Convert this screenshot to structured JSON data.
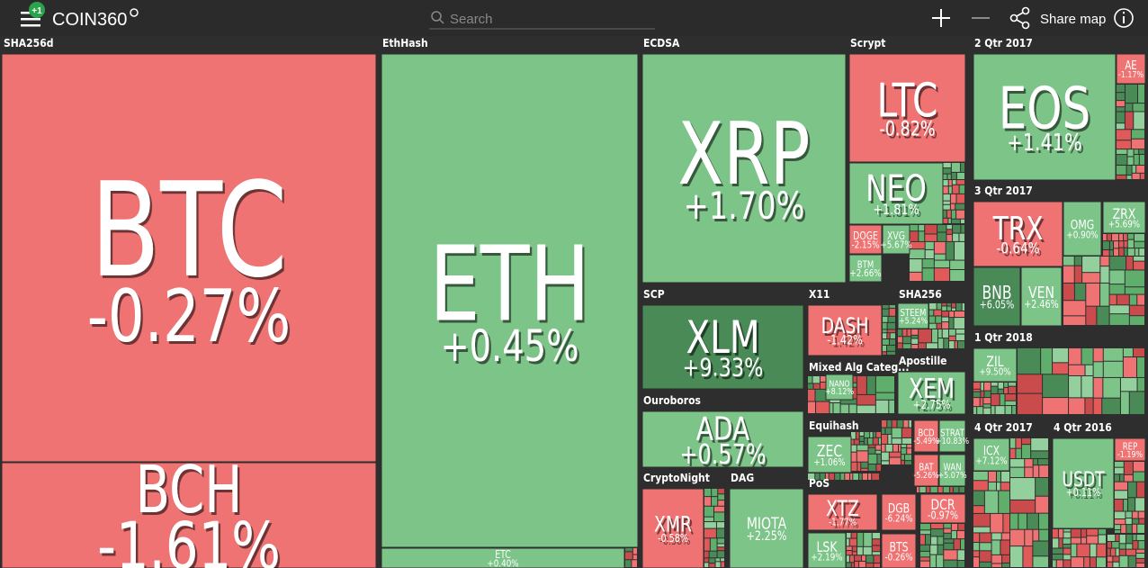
{
  "header": {
    "badge": "+1",
    "logo": "COIN360",
    "search_placeholder": "Search",
    "share": "Share map"
  },
  "groups": [
    {
      "label": "SHA256d",
      "tiles": [
        {
          "symbol": "BTC",
          "change": "-0.27%"
        },
        {
          "symbol": "BCH",
          "change": "-1.61%"
        }
      ]
    },
    {
      "label": "EthHash",
      "tiles": [
        {
          "symbol": "ETH",
          "change": "+0.45%"
        },
        {
          "symbol": "ETC",
          "change": "+0.40%"
        }
      ]
    },
    {
      "label": "ECDSA",
      "tiles": [
        {
          "symbol": "XRP",
          "change": "+1.70%"
        }
      ]
    },
    {
      "label": "Scrypt",
      "tiles": [
        {
          "symbol": "LTC",
          "change": "-0.82%"
        },
        {
          "symbol": "NEO",
          "change": "+1.81%"
        },
        {
          "symbol": "DOGE",
          "change": "-2.15%"
        },
        {
          "symbol": "XVG",
          "change": "+5.67%"
        },
        {
          "symbol": "BTM",
          "change": "+2.66%"
        }
      ]
    },
    {
      "label": "SCP",
      "tiles": [
        {
          "symbol": "XLM",
          "change": "+9.33%"
        }
      ]
    },
    {
      "label": "X11",
      "tiles": [
        {
          "symbol": "DASH",
          "change": "-1.42%"
        }
      ]
    },
    {
      "label": "SHA256",
      "tiles": [
        {
          "symbol": "STEEM",
          "change": "+5.24%"
        }
      ]
    },
    {
      "label": "Ouroboros",
      "tiles": [
        {
          "symbol": "ADA",
          "change": "+0.57%"
        }
      ]
    },
    {
      "label": "Mixed Alg Categ...",
      "tiles": [
        {
          "symbol": "NANO",
          "change": "+8.12%"
        }
      ]
    },
    {
      "label": "Apostille",
      "tiles": [
        {
          "symbol": "XEM",
          "change": "+2.75%"
        }
      ]
    },
    {
      "label": "Equihash",
      "tiles": [
        {
          "symbol": "ZEC",
          "change": "+1.06%"
        }
      ]
    },
    {
      "label": "CryptoNight",
      "tiles": [
        {
          "symbol": "XMR",
          "change": "-0.58%"
        }
      ]
    },
    {
      "label": "DAG",
      "tiles": [
        {
          "symbol": "MIOTA",
          "change": "+2.25%"
        }
      ]
    },
    {
      "label": "PoS",
      "tiles": [
        {
          "symbol": "XTZ",
          "change": "-1.77%"
        },
        {
          "symbol": "LSK",
          "change": "+2.19%"
        },
        {
          "symbol": "DGB",
          "change": "-6.24%"
        },
        {
          "symbol": "DCR",
          "change": "-0.97%"
        },
        {
          "symbol": "BTS",
          "change": "-0.26%"
        }
      ]
    },
    {
      "label": "2 Qtr 2017",
      "tiles": [
        {
          "symbol": "EOS",
          "change": "+1.41%"
        },
        {
          "symbol": "AE",
          "change": "-1.17%"
        }
      ]
    },
    {
      "label": "3 Qtr 2017",
      "tiles": [
        {
          "symbol": "TRX",
          "change": "-0.64%"
        },
        {
          "symbol": "OMG",
          "change": "+0.90%"
        },
        {
          "symbol": "ZRX",
          "change": "+5.69%"
        },
        {
          "symbol": "BNB",
          "change": "+6.05%"
        },
        {
          "symbol": "VEN",
          "change": "+2.46%"
        }
      ]
    },
    {
      "label": "1 Qtr 2018",
      "tiles": [
        {
          "symbol": "ZIL",
          "change": "+9.50%"
        }
      ]
    },
    {
      "label": "4 Qtr 2017",
      "tiles": [
        {
          "symbol": "ICX",
          "change": "+7.12%"
        }
      ]
    },
    {
      "label": "4 Qtr 2016",
      "tiles": [
        {
          "symbol": "USDT",
          "change": "+0.11%"
        },
        {
          "symbol": "REP",
          "change": "-1.19%"
        }
      ]
    }
  ],
  "ungrouped_tiles": [
    {
      "symbol": "BCD",
      "change": "-5.49%"
    },
    {
      "symbol": "STRAT",
      "change": "+10.83%"
    },
    {
      "symbol": "BAT",
      "change": "-5.26%"
    },
    {
      "symbol": "WAN",
      "change": "+5.07%"
    }
  ]
}
